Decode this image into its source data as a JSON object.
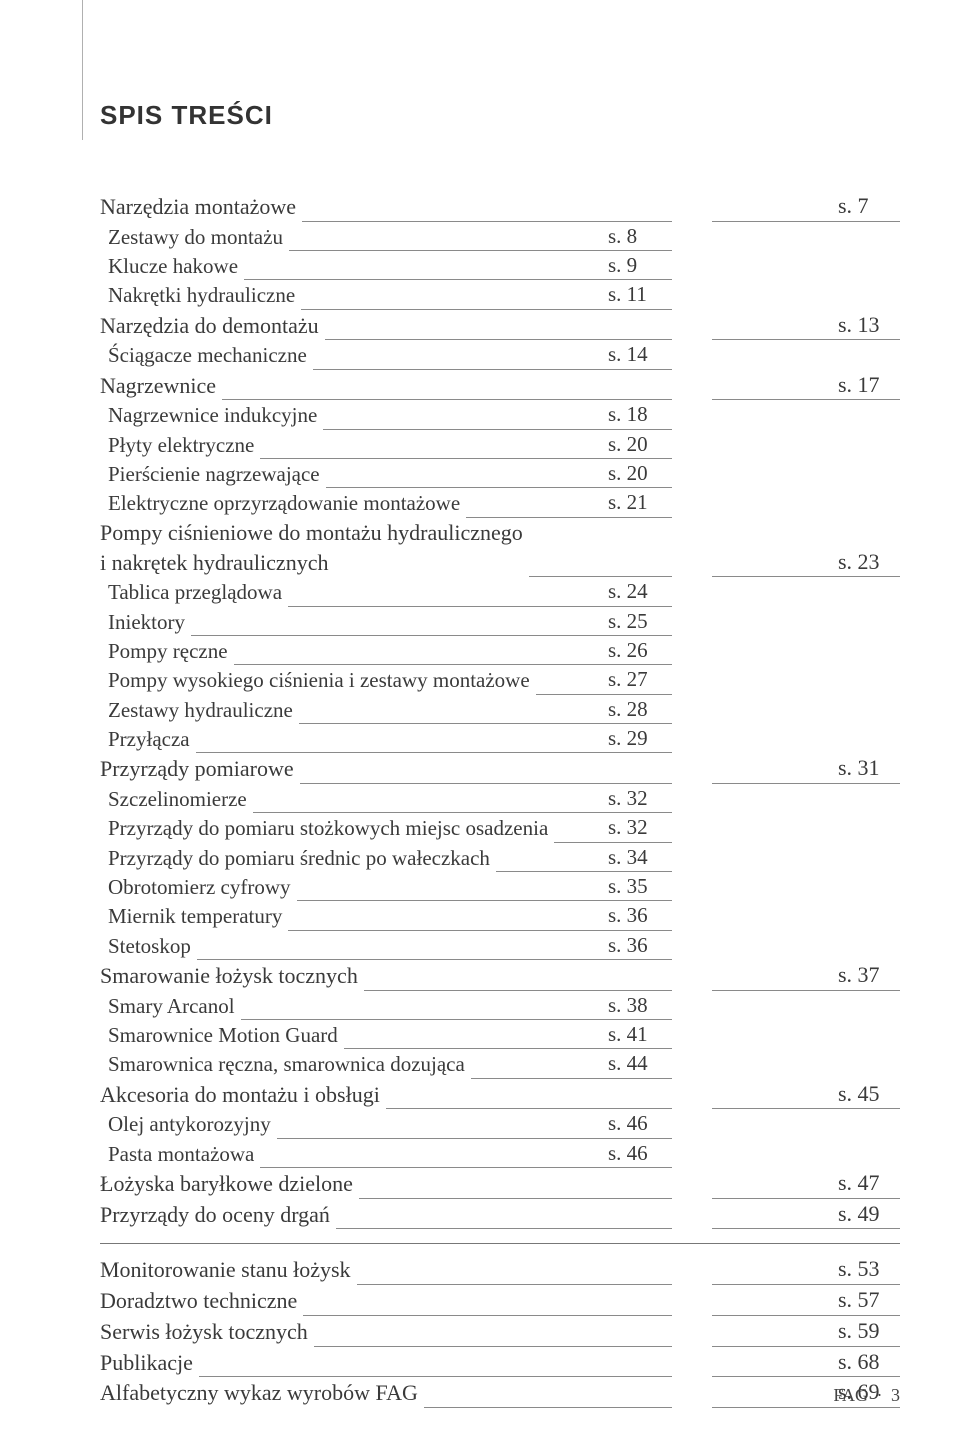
{
  "title": "SPIS TREŚCI",
  "footer": {
    "brand": "FAG",
    "sep": "·",
    "pagenum": "3"
  },
  "colors": {
    "text": "#3a3a3a",
    "rule": "#8a8a8a",
    "bg": "#ffffff"
  },
  "typography": {
    "body_fontsize_pt": 16,
    "title_fontsize_pt": 20,
    "title_weight": "bold"
  },
  "toc": [
    {
      "type": "section",
      "label": "Narzędzia montażowe",
      "page": "s. 7"
    },
    {
      "type": "sub",
      "label": "Zestawy do montażu",
      "page": "s. 8"
    },
    {
      "type": "sub",
      "label": "Klucze hakowe",
      "page": "s. 9"
    },
    {
      "type": "sub",
      "label": "Nakrętki hydrauliczne",
      "page": "s. 11"
    },
    {
      "type": "section",
      "label": "Narzędzia do demontażu",
      "page": "s. 13"
    },
    {
      "type": "sub",
      "label": "Ściągacze mechaniczne",
      "page": "s. 14"
    },
    {
      "type": "section",
      "label": "Nagrzewnice",
      "page": "s. 17"
    },
    {
      "type": "sub",
      "label": "Nagrzewnice indukcyjne",
      "page": "s. 18"
    },
    {
      "type": "sub",
      "label": "Płyty elektryczne",
      "page": "s. 20"
    },
    {
      "type": "sub",
      "label": "Pierścienie nagrzewające",
      "page": "s. 20"
    },
    {
      "type": "sub",
      "label": "Elektryczne oprzyrządowanie montażowe",
      "page": "s. 21"
    },
    {
      "type": "section",
      "multiline": true,
      "label": "Pompy ciśnieniowe do montażu hydraulicznego\ni nakrętek hydraulicznych",
      "page": "s. 23"
    },
    {
      "type": "sub",
      "label": "Tablica przeglądowa",
      "page": "s. 24"
    },
    {
      "type": "sub",
      "label": "Iniektory",
      "page": "s. 25"
    },
    {
      "type": "sub",
      "label": "Pompy ręczne",
      "page": "s. 26"
    },
    {
      "type": "sub",
      "label": "Pompy wysokiego ciśnienia i zestawy montażowe",
      "page": "s. 27"
    },
    {
      "type": "sub",
      "label": "Zestawy hydrauliczne",
      "page": "s. 28"
    },
    {
      "type": "sub",
      "label": "Przyłącza",
      "page": "s. 29"
    },
    {
      "type": "section",
      "label": "Przyrządy pomiarowe",
      "page": "s. 31"
    },
    {
      "type": "sub",
      "label": "Szczelinomierze",
      "page": "s. 32"
    },
    {
      "type": "sub",
      "label": "Przyrządy do pomiaru stożkowych miejsc osadzenia",
      "page": "s. 32"
    },
    {
      "type": "sub",
      "label": "Przyrządy do pomiaru średnic po wałeczkach",
      "page": "s. 34"
    },
    {
      "type": "sub",
      "label": "Obrotomierz cyfrowy",
      "page": "s. 35"
    },
    {
      "type": "sub",
      "label": "Miernik temperatury",
      "page": "s. 36"
    },
    {
      "type": "sub",
      "label": "Stetoskop",
      "page": "s. 36"
    },
    {
      "type": "section",
      "label": "Smarowanie łożysk tocznych",
      "page": "s. 37"
    },
    {
      "type": "sub",
      "label": "Smary Arcanol",
      "page": "s. 38"
    },
    {
      "type": "sub",
      "label": "Smarownice Motion Guard",
      "page": "s. 41"
    },
    {
      "type": "sub",
      "label": "Smarownica ręczna, smarownica dozująca",
      "page": "s. 44"
    },
    {
      "type": "section",
      "label": "Akcesoria do montażu i obsługi",
      "page": "s. 45"
    },
    {
      "type": "sub",
      "label": "Olej antykorozyjny",
      "page": "s. 46"
    },
    {
      "type": "sub",
      "label": "Pasta montażowa",
      "page": "s. 46"
    },
    {
      "type": "section",
      "label": "Łożyska baryłkowe dzielone",
      "page": "s. 47"
    },
    {
      "type": "section",
      "label": "Przyrządy do oceny drgań",
      "page": "s. 49"
    },
    {
      "type": "hr"
    },
    {
      "type": "section",
      "label": "Monitorowanie stanu łożysk",
      "page": "s. 53"
    },
    {
      "type": "section",
      "label": "Doradztwo techniczne",
      "page": "s. 57"
    },
    {
      "type": "section",
      "label": "Serwis łożysk tocznych",
      "page": "s. 59"
    },
    {
      "type": "section",
      "label": "Publikacje",
      "page": "s. 68"
    },
    {
      "type": "section",
      "label": "Alfabetyczny wykaz wyrobów FAG",
      "page": "s. 69"
    }
  ]
}
